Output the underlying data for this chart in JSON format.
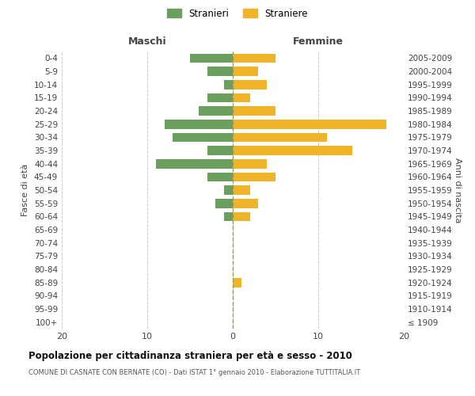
{
  "age_groups": [
    "100+",
    "95-99",
    "90-94",
    "85-89",
    "80-84",
    "75-79",
    "70-74",
    "65-69",
    "60-64",
    "55-59",
    "50-54",
    "45-49",
    "40-44",
    "35-39",
    "30-34",
    "25-29",
    "20-24",
    "15-19",
    "10-14",
    "5-9",
    "0-4"
  ],
  "birth_years": [
    "≤ 1909",
    "1910-1914",
    "1915-1919",
    "1920-1924",
    "1925-1929",
    "1930-1934",
    "1935-1939",
    "1940-1944",
    "1945-1949",
    "1950-1954",
    "1955-1959",
    "1960-1964",
    "1965-1969",
    "1970-1974",
    "1975-1979",
    "1980-1984",
    "1985-1989",
    "1990-1994",
    "1995-1999",
    "2000-2004",
    "2005-2009"
  ],
  "males": [
    0,
    0,
    0,
    0,
    0,
    0,
    0,
    0,
    1,
    2,
    1,
    3,
    9,
    3,
    7,
    8,
    4,
    3,
    1,
    3,
    5
  ],
  "females": [
    0,
    0,
    0,
    1,
    0,
    0,
    0,
    0,
    2,
    3,
    2,
    5,
    4,
    14,
    11,
    18,
    5,
    2,
    4,
    3,
    5
  ],
  "male_color": "#6a9f5e",
  "female_color": "#f0b429",
  "title": "Popolazione per cittadinanza straniera per età e sesso - 2010",
  "subtitle": "COMUNE DI CASNATE CON BERNATE (CO) - Dati ISTAT 1° gennaio 2010 - Elaborazione TUTTITALIA.IT",
  "ylabel_left": "Fasce di età",
  "ylabel_right": "Anni di nascita",
  "legend_male": "Stranieri",
  "legend_female": "Straniere",
  "xlim": 20,
  "background_color": "#ffffff",
  "grid_color": "#cccccc",
  "header_maschi": "Maschi",
  "header_femmine": "Femmine"
}
